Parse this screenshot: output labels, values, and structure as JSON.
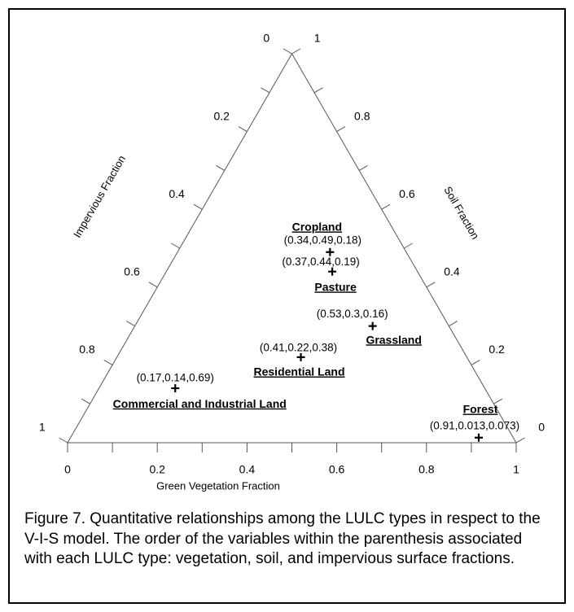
{
  "chart_data": {
    "type": "ternary",
    "xlabel": "Green Vegetation Fraction",
    "left_label": "Impervious Fraction",
    "right_label": "Soil Fraction",
    "xticks": [
      0,
      0.2,
      0.4,
      0.6,
      0.8,
      1
    ],
    "left_ticks": [
      0,
      0.2,
      0.4,
      0.6,
      0.8,
      1
    ],
    "right_ticks": [
      0,
      0.2,
      0.4,
      0.6,
      0.8,
      1
    ],
    "minor_ticks": [
      0.1,
      0.3,
      0.5,
      0.7,
      0.9
    ],
    "categories": [
      "Cropland",
      "Pasture",
      "Grassland",
      "Residential Land",
      "Commercial and Industrial Land",
      "Forest"
    ],
    "vegetation": [
      0.34,
      0.37,
      0.53,
      0.41,
      0.17,
      0.91
    ],
    "soil": [
      0.49,
      0.44,
      0.3,
      0.22,
      0.14,
      0.013
    ],
    "impervious": [
      0.18,
      0.19,
      0.16,
      0.38,
      0.69,
      0.073
    ],
    "value_labels": [
      "(0.34,0.49,0.18)",
      "(0.37,0.44,0.19)",
      "(0.53,0.3,0.16)",
      "(0.41,0.22,0.38)",
      "(0.17,0.14,0.69)",
      "(0.91,0.013,0.073)"
    ],
    "color": "#000000"
  },
  "caption": "Figure 7. Quantitative relationships among the LULC types in respect to the V-I-S model. The order of the variables within the parenthesis associated with each LULC type: vegetation, soil, and impervious surface fractions."
}
